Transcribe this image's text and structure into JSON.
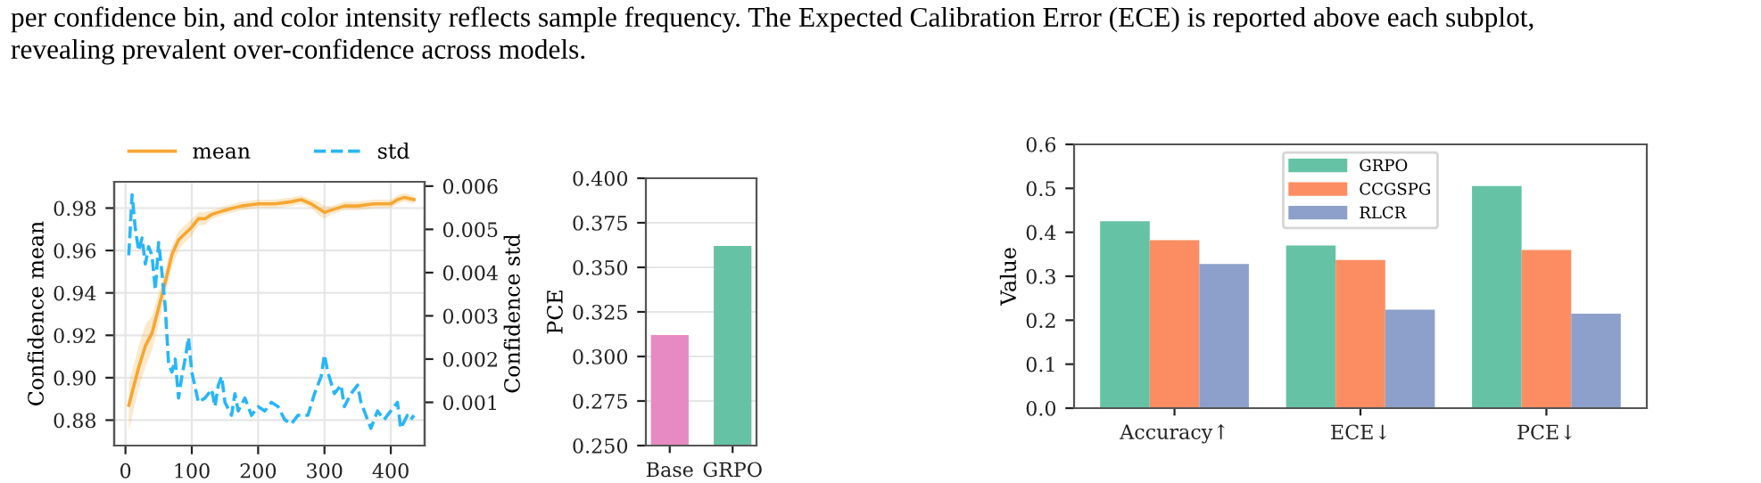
{
  "chart_data": [
    {
      "type": "line",
      "ylabel": "Confidence mean",
      "y2label": "Confidence std",
      "annotations": [
        "per confidence bin, and color intensity reflects sample frequency. The Expected Calibration Error (ECE) is reported above each subplot,",
        "revealing prevalent over-confidence across models."
      ],
      "xlim": [
        -17,
        451
      ],
      "xticks": [
        0,
        100,
        200,
        300,
        400
      ],
      "ylim": [
        0.868,
        0.9924
      ],
      "yticks": [
        {
          "value": 0.88,
          "label": "0.88"
        },
        {
          "value": 0.9,
          "label": "0.90"
        },
        {
          "value": 0.92,
          "label": "0.92"
        },
        {
          "value": 0.94,
          "label": "0.94"
        },
        {
          "value": 0.96,
          "label": "0.96"
        },
        {
          "value": 0.98,
          "label": "0.98"
        }
      ],
      "y2lim": [
        0,
        0.0061
      ],
      "y2ticks": [
        0.001,
        0.002,
        0.003,
        0.004,
        0.005,
        0.006
      ],
      "grid": true,
      "legend": "top",
      "series": [
        {
          "name": "mean",
          "color": "#f5a733",
          "line_style": "solid",
          "x": [
            5,
            20,
            30,
            40,
            50,
            60,
            70,
            80,
            90,
            100,
            110,
            120,
            130,
            150,
            175,
            200,
            225,
            250,
            265,
            280,
            290,
            300,
            310,
            330,
            350,
            375,
            400,
            410,
            420,
            435
          ],
          "values": [
            0.887,
            0.905,
            0.915,
            0.921,
            0.933,
            0.945,
            0.958,
            0.965,
            0.968,
            0.971,
            0.975,
            0.975,
            0.977,
            0.979,
            0.981,
            0.982,
            0.982,
            0.983,
            0.984,
            0.982,
            0.98,
            0.978,
            0.979,
            0.981,
            0.981,
            0.982,
            0.982,
            0.984,
            0.985,
            0.984
          ],
          "lower": [
            0.875,
            0.895,
            0.905,
            0.913,
            0.925,
            0.939,
            0.952,
            0.96,
            0.964,
            0.967,
            0.972,
            0.972,
            0.975,
            0.977,
            0.979,
            0.98,
            0.98,
            0.981,
            0.982,
            0.98,
            0.977,
            0.975,
            0.977,
            0.979,
            0.979,
            0.98,
            0.98,
            0.982,
            0.983,
            0.982
          ],
          "upper": [
            0.897,
            0.915,
            0.925,
            0.929,
            0.94,
            0.951,
            0.962,
            0.969,
            0.972,
            0.975,
            0.978,
            0.978,
            0.979,
            0.981,
            0.983,
            0.984,
            0.984,
            0.985,
            0.986,
            0.984,
            0.983,
            0.981,
            0.981,
            0.983,
            0.983,
            0.984,
            0.984,
            0.986,
            0.987,
            0.986
          ]
        },
        {
          "name": "std",
          "color": "#29b6f6",
          "line_style": "dashed",
          "axis": "y2",
          "x": [
            5,
            10,
            15,
            20,
            25,
            30,
            35,
            40,
            45,
            50,
            55,
            60,
            65,
            70,
            75,
            80,
            85,
            90,
            95,
            100,
            110,
            120,
            130,
            135,
            140,
            145,
            150,
            160,
            165,
            170,
            180,
            190,
            200,
            210,
            220,
            230,
            240,
            250,
            260,
            275,
            285,
            295,
            300,
            305,
            315,
            325,
            330,
            340,
            350,
            355,
            365,
            370,
            380,
            390,
            400,
            410,
            415,
            425,
            430,
            435
          ],
          "values": [
            0.0044,
            0.0058,
            0.005,
            0.0045,
            0.0048,
            0.0042,
            0.0046,
            0.0044,
            0.0036,
            0.0047,
            0.004,
            0.0032,
            0.0019,
            0.0017,
            0.002,
            0.0011,
            0.0016,
            0.002,
            0.0025,
            0.0017,
            0.001,
            0.0011,
            0.0013,
            0.0009,
            0.0014,
            0.0016,
            0.001,
            0.0007,
            0.0012,
            0.0008,
            0.0011,
            0.0007,
            0.0009,
            0.0008,
            0.001,
            0.0009,
            0.0006,
            0.0005,
            0.0007,
            0.0007,
            0.0012,
            0.0016,
            0.0021,
            0.0017,
            0.0012,
            0.0014,
            0.0009,
            0.0012,
            0.0014,
            0.001,
            0.0006,
            0.0004,
            0.0008,
            0.0006,
            0.0008,
            0.001,
            0.0004,
            0.0007,
            0.0006,
            0.0007
          ]
        }
      ]
    },
    {
      "type": "bar",
      "ylabel": "PCE",
      "categories": [
        "Base",
        "GRPO"
      ],
      "values": [
        0.312,
        0.362
      ],
      "colors": [
        "#e78ac3",
        "#66c2a5"
      ],
      "ylim": [
        0.25,
        0.4
      ],
      "yticks": [
        {
          "value": 0.25,
          "label": "0.250"
        },
        {
          "value": 0.275,
          "label": "0.275"
        },
        {
          "value": 0.3,
          "label": "0.300"
        },
        {
          "value": 0.325,
          "label": "0.325"
        },
        {
          "value": 0.35,
          "label": "0.350"
        },
        {
          "value": 0.375,
          "label": "0.375"
        },
        {
          "value": 0.4,
          "label": "0.400"
        }
      ],
      "grid": "y"
    },
    {
      "type": "bar",
      "ylabel": "Value",
      "categories": [
        "Accuracy↑",
        "ECE↓",
        "PCE↓"
      ],
      "ylim": [
        0,
        0.6
      ],
      "yticks": [
        {
          "value": 0,
          "label": "0.0"
        },
        0.1,
        0.2,
        0.3,
        0.4,
        0.5,
        0.6
      ],
      "legend": "top",
      "series": [
        {
          "name": "GRPO",
          "color": "#66c2a5",
          "values": [
            0.425,
            0.37,
            0.505
          ]
        },
        {
          "name": "CCGSPG",
          "color": "#fc8d62",
          "values": [
            0.382,
            0.337,
            0.36
          ]
        },
        {
          "name": "RLCR",
          "color": "#8da0cb",
          "values": [
            0.328,
            0.224,
            0.215
          ]
        }
      ]
    }
  ]
}
